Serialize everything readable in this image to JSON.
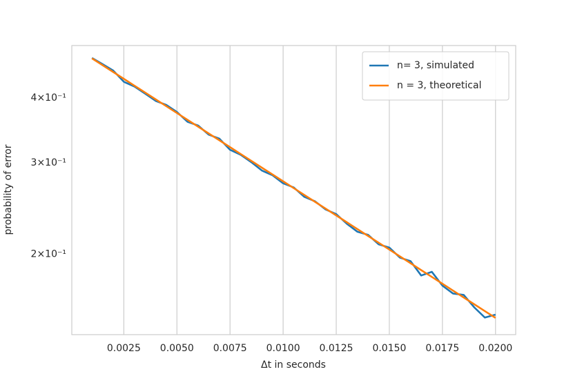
{
  "chart_data": {
    "type": "line",
    "xlabel": "Δt in seconds",
    "ylabel": "probability of error",
    "x": [
      0.001,
      0.0015,
      0.002,
      0.0025,
      0.003,
      0.0035,
      0.004,
      0.0045,
      0.005,
      0.0055,
      0.006,
      0.0065,
      0.007,
      0.0075,
      0.008,
      0.0085,
      0.009,
      0.0095,
      0.01,
      0.0105,
      0.011,
      0.0115,
      0.012,
      0.0125,
      0.013,
      0.0135,
      0.014,
      0.0145,
      0.015,
      0.0155,
      0.016,
      0.0165,
      0.017,
      0.0175,
      0.018,
      0.0185,
      0.019,
      0.0195,
      0.02
    ],
    "series": [
      {
        "name": "n= 3, simulated",
        "color": "#1f77b4",
        "values": [
          0.478,
          0.465,
          0.452,
          0.43,
          0.421,
          0.408,
          0.395,
          0.388,
          0.376,
          0.36,
          0.354,
          0.34,
          0.334,
          0.318,
          0.311,
          0.301,
          0.29,
          0.284,
          0.274,
          0.269,
          0.258,
          0.253,
          0.244,
          0.239,
          0.229,
          0.221,
          0.218,
          0.209,
          0.206,
          0.197,
          0.194,
          0.182,
          0.185,
          0.174,
          0.168,
          0.167,
          0.158,
          0.151,
          0.153
        ]
      },
      {
        "name": "n = 3, theoretical",
        "color": "#ff7f0e",
        "values": [
          0.477,
          0.4628,
          0.449,
          0.4356,
          0.4226,
          0.41,
          0.3977,
          0.3858,
          0.3743,
          0.3631,
          0.3523,
          0.3418,
          0.3316,
          0.3217,
          0.3121,
          0.3028,
          0.2937,
          0.285,
          0.2765,
          0.2682,
          0.2602,
          0.2524,
          0.2449,
          0.2376,
          0.2305,
          0.2236,
          0.2169,
          0.2105,
          0.2042,
          0.1981,
          0.1922,
          0.1864,
          0.1809,
          0.1755,
          0.1702,
          0.1651,
          0.1602,
          0.1554,
          0.1508
        ]
      }
    ],
    "xlim": [
      5e-05,
      0.02095
    ],
    "xticks": [
      0.0025,
      {
        "value": 0.005,
        "label": "0.0050"
      },
      0.0075,
      {
        "value": 0.01,
        "label": "0.0100"
      },
      0.0125,
      {
        "value": 0.015,
        "label": "0.0150"
      },
      0.0175,
      {
        "value": 0.02,
        "label": "0.0200"
      }
    ],
    "ylim": [
      0.14,
      0.505
    ],
    "yticks": [
      {
        "value": 0.2,
        "label": "2×10⁻¹"
      },
      {
        "value": 0.3,
        "label": "3×10⁻¹"
      },
      {
        "value": 0.4,
        "label": "4×10⁻¹"
      }
    ],
    "yscale": "log",
    "grid": "x",
    "legend": "upper right"
  }
}
